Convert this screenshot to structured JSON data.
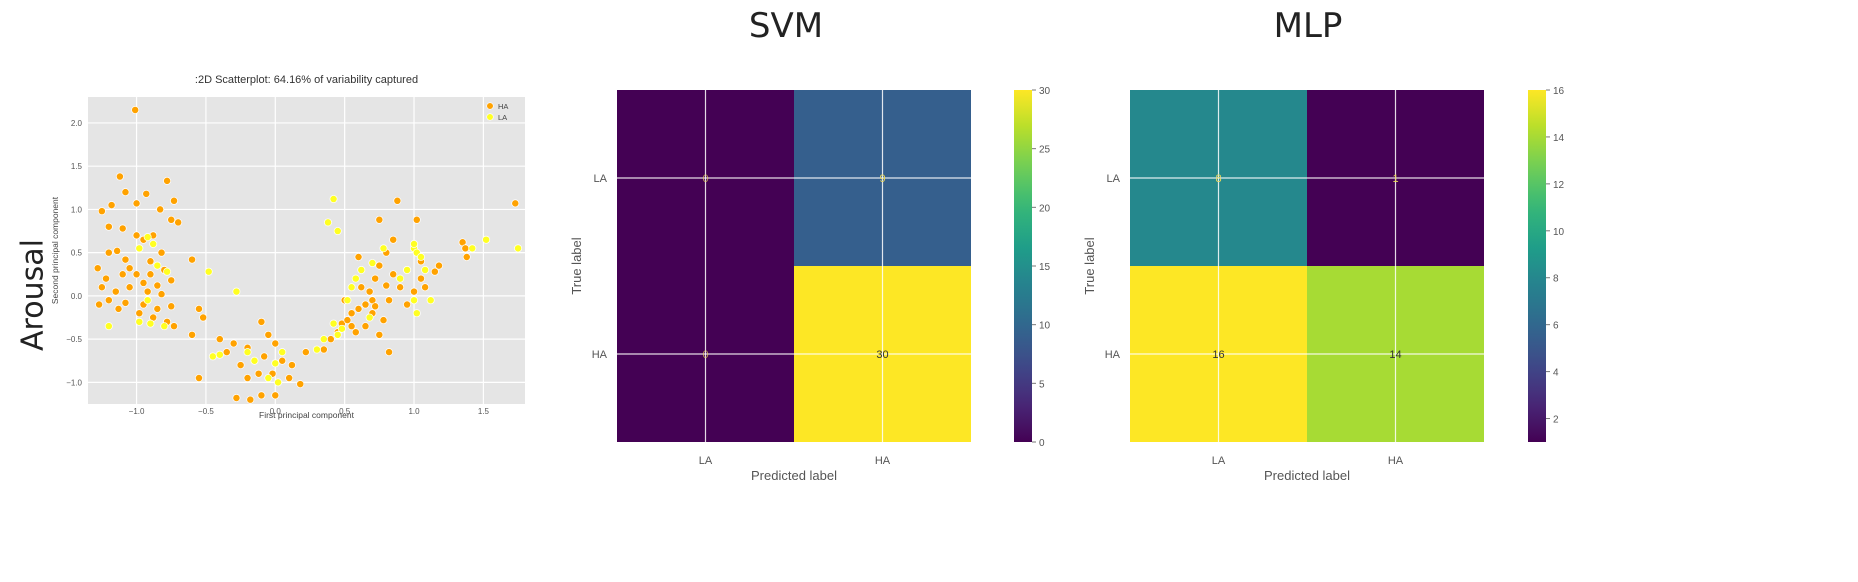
{
  "row_label": "Arousal",
  "colors": {
    "HA": "#ffa200",
    "LA": "#ffff22",
    "scatter_bg": "#e5e5e5"
  },
  "chart_data": [
    {
      "type": "scatter",
      "title": ":2D Scatterplot: 64.16% of variability captured",
      "xlabel": "First principal component",
      "ylabel": "Second principal component",
      "xlim": [
        -1.35,
        1.8
      ],
      "ylim": [
        -1.25,
        2.3
      ],
      "xticks": [
        -1.0,
        -0.5,
        0.0,
        0.5,
        1.0,
        1.5
      ],
      "xtick_labels": [
        "−1.0",
        "−0.5",
        "0.0",
        "0.5",
        "1.0",
        "1.5"
      ],
      "yticks": [
        -1.0,
        -0.5,
        0.0,
        0.5,
        1.0,
        1.5,
        2.0
      ],
      "ytick_labels": [
        "−1.0",
        "−0.5",
        "0.0",
        "0.5",
        "1.0",
        "1.5",
        "2.0"
      ],
      "grid": true,
      "legend_placement": "top-right",
      "series": [
        {
          "name": "HA",
          "points": [
            [
              -1.01,
              2.15
            ],
            [
              -1.12,
              1.38
            ],
            [
              -0.78,
              1.33
            ],
            [
              -1.08,
              1.2
            ],
            [
              -0.93,
              1.18
            ],
            [
              -0.73,
              1.1
            ],
            [
              -1.0,
              1.07
            ],
            [
              -1.18,
              1.05
            ],
            [
              -1.25,
              0.98
            ],
            [
              -0.83,
              1.0
            ],
            [
              -1.1,
              0.78
            ],
            [
              -1.2,
              0.8
            ],
            [
              -0.88,
              0.7
            ],
            [
              -0.75,
              0.88
            ],
            [
              -0.7,
              0.85
            ],
            [
              -1.0,
              0.7
            ],
            [
              -0.95,
              0.65
            ],
            [
              -1.14,
              0.52
            ],
            [
              -1.2,
              0.5
            ],
            [
              -1.08,
              0.42
            ],
            [
              -0.9,
              0.4
            ],
            [
              -0.82,
              0.5
            ],
            [
              -0.6,
              0.42
            ],
            [
              -1.28,
              0.32
            ],
            [
              -1.05,
              0.32
            ],
            [
              -1.0,
              0.25
            ],
            [
              -0.9,
              0.25
            ],
            [
              -0.8,
              0.3
            ],
            [
              -1.22,
              0.2
            ],
            [
              -1.1,
              0.25
            ],
            [
              -0.95,
              0.15
            ],
            [
              -0.85,
              0.12
            ],
            [
              -0.75,
              0.18
            ],
            [
              -1.25,
              0.1
            ],
            [
              -1.15,
              0.05
            ],
            [
              -1.05,
              0.1
            ],
            [
              -0.92,
              0.05
            ],
            [
              -0.82,
              0.02
            ],
            [
              -1.2,
              -0.05
            ],
            [
              -1.08,
              -0.08
            ],
            [
              -0.95,
              -0.1
            ],
            [
              -0.85,
              -0.15
            ],
            [
              -0.75,
              -0.12
            ],
            [
              -1.27,
              -0.1
            ],
            [
              -1.13,
              -0.15
            ],
            [
              -0.98,
              -0.2
            ],
            [
              -0.88,
              -0.25
            ],
            [
              -0.78,
              -0.3
            ],
            [
              -0.73,
              -0.35
            ],
            [
              -0.55,
              -0.15
            ],
            [
              -0.52,
              -0.25
            ],
            [
              -0.6,
              -0.45
            ],
            [
              -0.4,
              -0.5
            ],
            [
              -0.55,
              -0.95
            ],
            [
              -0.35,
              -0.65
            ],
            [
              -0.3,
              -0.55
            ],
            [
              -0.2,
              -0.6
            ],
            [
              -0.25,
              -0.8
            ],
            [
              -0.2,
              -0.95
            ],
            [
              -0.18,
              -1.2
            ],
            [
              -0.28,
              -1.18
            ],
            [
              -0.1,
              -1.15
            ],
            [
              -0.12,
              -0.9
            ],
            [
              -0.08,
              -0.7
            ],
            [
              -0.02,
              -0.9
            ],
            [
              0.05,
              -0.75
            ],
            [
              0.0,
              -1.15
            ],
            [
              0.1,
              -0.95
            ],
            [
              0.12,
              -0.8
            ],
            [
              0.18,
              -1.02
            ],
            [
              0.22,
              -0.65
            ],
            [
              -0.05,
              -0.45
            ],
            [
              0.0,
              -0.55
            ],
            [
              -0.1,
              -0.3
            ],
            [
              0.35,
              -0.62
            ],
            [
              0.4,
              -0.5
            ],
            [
              0.45,
              -0.42
            ],
            [
              0.48,
              -0.32
            ],
            [
              0.52,
              -0.28
            ],
            [
              0.55,
              -0.2
            ],
            [
              0.6,
              -0.15
            ],
            [
              0.65,
              -0.1
            ],
            [
              0.7,
              -0.05
            ],
            [
              0.62,
              0.1
            ],
            [
              0.72,
              0.2
            ],
            [
              0.8,
              0.12
            ],
            [
              0.75,
              0.35
            ],
            [
              0.8,
              0.5
            ],
            [
              0.85,
              0.65
            ],
            [
              0.88,
              1.1
            ],
            [
              0.75,
              0.88
            ],
            [
              1.02,
              0.88
            ],
            [
              1.0,
              0.6
            ],
            [
              1.05,
              0.4
            ],
            [
              0.95,
              0.3
            ],
            [
              1.05,
              0.2
            ],
            [
              1.15,
              0.28
            ],
            [
              1.18,
              0.35
            ],
            [
              0.9,
              0.1
            ],
            [
              0.82,
              -0.05
            ],
            [
              0.7,
              -0.2
            ],
            [
              0.78,
              -0.28
            ],
            [
              0.65,
              -0.35
            ],
            [
              0.75,
              -0.45
            ],
            [
              0.82,
              -0.65
            ],
            [
              0.58,
              -0.42
            ],
            [
              1.35,
              0.62
            ],
            [
              1.37,
              0.55
            ],
            [
              1.38,
              0.45
            ],
            [
              1.73,
              1.07
            ],
            [
              0.5,
              -0.05
            ],
            [
              0.6,
              0.45
            ],
            [
              0.85,
              0.25
            ],
            [
              1.0,
              0.05
            ],
            [
              1.08,
              0.1
            ],
            [
              0.68,
              0.05
            ],
            [
              0.55,
              -0.35
            ],
            [
              0.72,
              -0.12
            ],
            [
              0.95,
              -0.1
            ]
          ]
        },
        {
          "name": "LA",
          "points": [
            [
              -0.92,
              0.68
            ],
            [
              -0.88,
              0.6
            ],
            [
              -0.98,
              0.55
            ],
            [
              -0.85,
              0.35
            ],
            [
              -0.78,
              0.28
            ],
            [
              -0.92,
              -0.05
            ],
            [
              -0.98,
              -0.3
            ],
            [
              -0.9,
              -0.32
            ],
            [
              -0.8,
              -0.35
            ],
            [
              -1.2,
              -0.35
            ],
            [
              -0.48,
              0.28
            ],
            [
              -0.28,
              0.05
            ],
            [
              -0.45,
              -0.7
            ],
            [
              -0.4,
              -0.68
            ],
            [
              -0.15,
              -0.75
            ],
            [
              -0.05,
              -0.95
            ],
            [
              0.0,
              -0.78
            ],
            [
              0.02,
              -1.0
            ],
            [
              0.05,
              -0.65
            ],
            [
              0.3,
              -0.62
            ],
            [
              0.42,
              1.12
            ],
            [
              0.38,
              0.85
            ],
            [
              0.45,
              0.75
            ],
            [
              0.42,
              -0.32
            ],
            [
              0.48,
              -0.38
            ],
            [
              0.52,
              -0.05
            ],
            [
              0.55,
              0.1
            ],
            [
              0.58,
              0.2
            ],
            [
              0.62,
              0.3
            ],
            [
              0.7,
              0.38
            ],
            [
              0.78,
              0.55
            ],
            [
              0.95,
              0.3
            ],
            [
              1.0,
              0.55
            ],
            [
              1.02,
              0.5
            ],
            [
              1.05,
              0.45
            ],
            [
              1.0,
              0.6
            ],
            [
              1.08,
              0.3
            ],
            [
              1.0,
              -0.05
            ],
            [
              1.02,
              -0.2
            ],
            [
              1.12,
              -0.05
            ],
            [
              0.9,
              0.2
            ],
            [
              0.68,
              -0.25
            ],
            [
              1.52,
              0.65
            ],
            [
              1.75,
              0.55
            ],
            [
              1.42,
              0.55
            ],
            [
              0.35,
              -0.5
            ],
            [
              0.45,
              -0.45
            ],
            [
              -0.2,
              -0.65
            ]
          ]
        }
      ]
    },
    {
      "type": "heatmap",
      "title": "SVM",
      "xlabel": "Predicted label",
      "ylabel": "True label",
      "x_categories": [
        "LA",
        "HA"
      ],
      "y_categories": [
        "LA",
        "HA"
      ],
      "values": [
        [
          0,
          9
        ],
        [
          0,
          30
        ]
      ],
      "cell_labels": [
        [
          "0",
          "9"
        ],
        [
          "0",
          "30"
        ]
      ],
      "colorbar": {
        "min": 0,
        "max": 30,
        "ticks": [
          0,
          5,
          10,
          15,
          20,
          25,
          30
        ],
        "tick_labels": [
          "0",
          "5",
          "10",
          "15",
          "20",
          "25",
          "30"
        ]
      }
    },
    {
      "type": "heatmap",
      "title": "MLP",
      "xlabel": "Predicted label",
      "ylabel": "True label",
      "x_categories": [
        "LA",
        "HA"
      ],
      "y_categories": [
        "LA",
        "HA"
      ],
      "values": [
        [
          8,
          1
        ],
        [
          16,
          14
        ]
      ],
      "cell_labels": [
        [
          "8",
          "1"
        ],
        [
          "16",
          "14"
        ]
      ],
      "colorbar": {
        "min": 1,
        "max": 16,
        "ticks": [
          2,
          4,
          6,
          8,
          10,
          12,
          14,
          16
        ],
        "tick_labels": [
          "2",
          "4",
          "6",
          "8",
          "10",
          "12",
          "14",
          "16"
        ]
      }
    }
  ]
}
